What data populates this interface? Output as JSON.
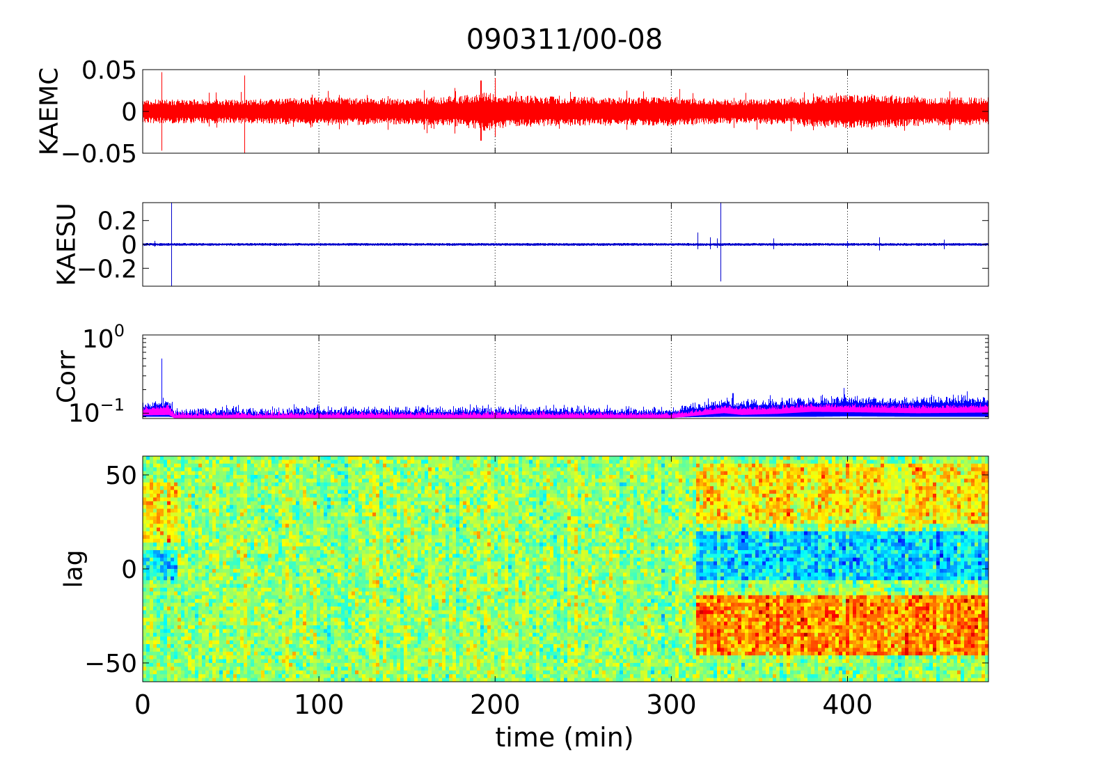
{
  "figure": {
    "title": "090311/00-08",
    "xlabel": "time (min)",
    "xlim": [
      0,
      480
    ],
    "xticks": [
      0,
      100,
      200,
      300,
      400
    ],
    "xtick_labels": [
      "0",
      "100",
      "200",
      "300",
      "400"
    ]
  },
  "colors": {
    "kaemc": "#ff0000",
    "kaesu": "#0000cc",
    "corr_blue": "#0000ff",
    "corr_magenta": "#ff00ff",
    "grid": "#000000"
  },
  "chart_data": [
    {
      "type": "line",
      "ylabel": "KAEMC",
      "xlim": [
        0,
        480
      ],
      "ylim": [
        -0.05,
        0.05
      ],
      "yticks": [
        -0.05,
        0,
        0.05
      ],
      "ytick_labels": [
        "−0.05",
        "0",
        "0.05"
      ],
      "grid": "x-dotted",
      "series": [
        {
          "color": "#ff0000",
          "amplitude_profile": {
            "x": [
              0,
              50,
              100,
              150,
              180,
              195,
              200,
              230,
              280,
              300,
              320,
              340,
              370,
              390,
              420,
              450,
              480
            ],
            "value": [
              0.012,
              0.012,
              0.014,
              0.013,
              0.015,
              0.02,
              0.017,
              0.015,
              0.014,
              0.015,
              0.013,
              0.012,
              0.013,
              0.017,
              0.016,
              0.014,
              0.014
            ]
          },
          "spikes": [
            {
              "x": 11,
              "min": -0.047,
              "max": 0.047
            },
            {
              "x": 58,
              "min": -0.05,
              "max": 0.043
            },
            {
              "x": 192,
              "min": -0.035,
              "max": 0.037
            },
            {
              "x": 200,
              "min": -0.03,
              "max": 0.04
            }
          ]
        }
      ]
    },
    {
      "type": "line",
      "ylabel": "KAESU",
      "xlim": [
        0,
        480
      ],
      "ylim": [
        -0.35,
        0.35
      ],
      "yticks": [
        -0.2,
        0,
        0.2
      ],
      "ytick_labels": [
        "−0.2",
        "0",
        "0.2"
      ],
      "grid": "x-dotted",
      "series": [
        {
          "color": "#0000cc",
          "baseline_amplitude": 0.012,
          "spikes": [
            {
              "x": 7,
              "min": -0.02,
              "max": 0.03
            },
            {
              "x": 16.5,
              "min": -0.35,
              "max": 0.35
            },
            {
              "x": 315,
              "min": -0.04,
              "max": 0.1
            },
            {
              "x": 322,
              "min": -0.04,
              "max": 0.06
            },
            {
              "x": 326,
              "min": -0.03,
              "max": 0.05
            },
            {
              "x": 328,
              "min": -0.31,
              "max": 0.35
            },
            {
              "x": 358,
              "min": -0.04,
              "max": 0.05
            },
            {
              "x": 400,
              "min": -0.03,
              "max": 0.03
            },
            {
              "x": 418,
              "min": -0.05,
              "max": 0.06
            },
            {
              "x": 455,
              "min": -0.04,
              "max": 0.04
            }
          ]
        }
      ]
    },
    {
      "type": "line",
      "ylabel": "Corr",
      "xlim": [
        0,
        480
      ],
      "yscale": "log",
      "ylim": [
        0.0855,
        1
      ],
      "ytick_labels": [
        {
          "base": "10",
          "exp": "0",
          "value": 1
        },
        {
          "base": "10",
          "exp": "−1",
          "value": 0.1
        }
      ],
      "grid": "x-dotted",
      "series": [
        {
          "name": "",
          "color": "#0000ff",
          "trend": {
            "x": [
              0,
              15,
              18,
              80,
              100,
              200,
              300,
              312,
              330,
              340,
              360,
              380,
              400,
              440,
              480
            ],
            "upper": [
              0.115,
              0.125,
              0.097,
              0.097,
              0.1,
              0.1,
              0.099,
              0.11,
              0.125,
              0.12,
              0.125,
              0.13,
              0.135,
              0.13,
              0.135
            ],
            "lower": [
              0.09,
              0.09,
              0.088,
              0.088,
              0.088,
              0.088,
              0.088,
              0.089,
              0.09,
              0.09,
              0.09,
              0.09,
              0.091,
              0.09,
              0.09
            ]
          },
          "spikes": [
            {
              "x": 11,
              "max": 0.5
            },
            {
              "x": 86,
              "max": 0.13
            },
            {
              "x": 335,
              "max": 0.18
            },
            {
              "x": 356,
              "max": 0.17
            },
            {
              "x": 398,
              "max": 0.21
            },
            {
              "x": 468,
              "max": 0.19
            }
          ]
        },
        {
          "name": "",
          "color": "#ff00ff",
          "trend": {
            "x": [
              0,
              15,
              18,
              80,
              100,
              200,
              300,
              312,
              330,
              340,
              360,
              380,
              400,
              440,
              480
            ],
            "upper": [
              0.108,
              0.115,
              0.093,
              0.093,
              0.094,
              0.094,
              0.094,
              0.1,
              0.115,
              0.11,
              0.112,
              0.12,
              0.118,
              0.115,
              0.118
            ],
            "lower": [
              0.094,
              0.095,
              0.0858,
              0.086,
              0.086,
              0.086,
              0.086,
              0.092,
              0.1,
              0.095,
              0.098,
              0.104,
              0.103,
              0.1,
              0.102
            ]
          }
        }
      ]
    },
    {
      "type": "heatmap",
      "ylabel": "lag",
      "xlim": [
        0,
        480
      ],
      "ylim": [
        -60,
        60
      ],
      "yticks": [
        -50,
        0,
        50
      ],
      "ytick_labels": [
        "−50",
        "0",
        "50"
      ],
      "colormap": "jet",
      "value_range": [
        -1,
        1
      ],
      "features": [
        {
          "x": [
            315,
            480
          ],
          "lag": [
            -45,
            -15
          ],
          "level": 0.55
        },
        {
          "x": [
            315,
            480
          ],
          "lag": [
            -5,
            20
          ],
          "level": -0.45
        },
        {
          "x": [
            315,
            480
          ],
          "lag": [
            25,
            55
          ],
          "level": 0.3
        },
        {
          "x": [
            0,
            20
          ],
          "lag": [
            15,
            45
          ],
          "level": 0.35
        },
        {
          "x": [
            0,
            20
          ],
          "lag": [
            -5,
            10
          ],
          "level": -0.35
        }
      ]
    }
  ]
}
